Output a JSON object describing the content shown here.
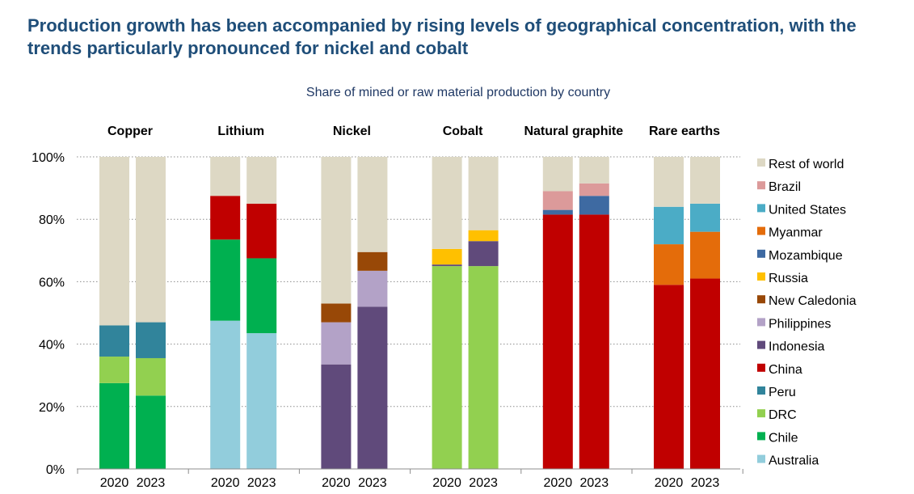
{
  "chart_data": {
    "type": "bar",
    "stacked": true,
    "title": "Production growth has been accompanied by rising levels of geographical concentration, with the trends particularly pronounced for nickel and cobalt",
    "subtitle": "Share of mined or raw material production by country",
    "xlabel": "",
    "ylabel": "",
    "ylim": [
      0,
      100
    ],
    "y_ticks": [
      "0%",
      "20%",
      "40%",
      "60%",
      "80%",
      "100%"
    ],
    "grid": true,
    "legend_position": "right",
    "groups": [
      {
        "name": "Copper",
        "years": [
          "2020",
          "2023"
        ],
        "bars": [
          {
            "Chile": 27.5,
            "DRC": 8.5,
            "Peru": 10.0,
            "Rest of world": 54.0
          },
          {
            "Chile": 23.5,
            "DRC": 12.0,
            "Peru": 11.5,
            "Rest of world": 53.0
          }
        ]
      },
      {
        "name": "Lithium",
        "years": [
          "2020",
          "2023"
        ],
        "bars": [
          {
            "Australia": 47.5,
            "Chile": 26.0,
            "China": 14.0,
            "Rest of world": 12.5
          },
          {
            "Australia": 43.5,
            "Chile": 24.0,
            "China": 17.5,
            "Rest of world": 15.0
          }
        ]
      },
      {
        "name": "Nickel",
        "years": [
          "2020",
          "2023"
        ],
        "bars": [
          {
            "Indonesia": 33.5,
            "Philippines": 13.5,
            "New Caledonia": 6.0,
            "Rest of world": 47.0
          },
          {
            "Indonesia": 52.0,
            "Philippines": 11.5,
            "New Caledonia": 6.0,
            "Rest of world": 30.5
          }
        ]
      },
      {
        "name": "Cobalt",
        "years": [
          "2020",
          "2023"
        ],
        "bars": [
          {
            "DRC": 65.0,
            "Indonesia": 0.5,
            "Russia": 5.0,
            "Rest of world": 29.5
          },
          {
            "DRC": 65.0,
            "Indonesia": 8.0,
            "Russia": 3.5,
            "Rest of world": 23.5
          }
        ]
      },
      {
        "name": "Natural graphite",
        "years": [
          "2020",
          "2023"
        ],
        "bars": [
          {
            "China": 81.5,
            "Mozambique": 1.5,
            "Brazil": 6.0,
            "Rest of world": 11.0
          },
          {
            "China": 81.5,
            "Mozambique": 6.0,
            "Brazil": 4.0,
            "Rest of world": 8.5
          }
        ]
      },
      {
        "name": "Rare earths",
        "years": [
          "2020",
          "2023"
        ],
        "bars": [
          {
            "China": 59.0,
            "Myanmar": 13.0,
            "United States": 12.0,
            "Rest of world": 16.0
          },
          {
            "China": 61.0,
            "Myanmar": 15.0,
            "United States": 9.0,
            "Rest of world": 15.0
          }
        ]
      }
    ],
    "legend": [
      {
        "name": "Rest of world",
        "color": "#ddd8c4"
      },
      {
        "name": "Brazil",
        "color": "#dc9a9a"
      },
      {
        "name": "United States",
        "color": "#4bacc6"
      },
      {
        "name": "Myanmar",
        "color": "#e46c0a"
      },
      {
        "name": "Mozambique",
        "color": "#3e6aa2"
      },
      {
        "name": "Russia",
        "color": "#ffc000"
      },
      {
        "name": "New Caledonia",
        "color": "#984807"
      },
      {
        "name": "Philippines",
        "color": "#b3a2c7"
      },
      {
        "name": "Indonesia",
        "color": "#604a7b"
      },
      {
        "name": "China",
        "color": "#c00000"
      },
      {
        "name": "Peru",
        "color": "#31849b"
      },
      {
        "name": "DRC",
        "color": "#92d050"
      },
      {
        "name": "Chile",
        "color": "#00b050"
      },
      {
        "name": "Australia",
        "color": "#92cddc"
      }
    ],
    "stack_order": [
      "Australia",
      "Chile",
      "DRC",
      "Indonesia",
      "China",
      "Peru",
      "Philippines",
      "New Caledonia",
      "Russia",
      "Mozambique",
      "Myanmar",
      "Brazil",
      "United States",
      "Rest of world"
    ]
  }
}
